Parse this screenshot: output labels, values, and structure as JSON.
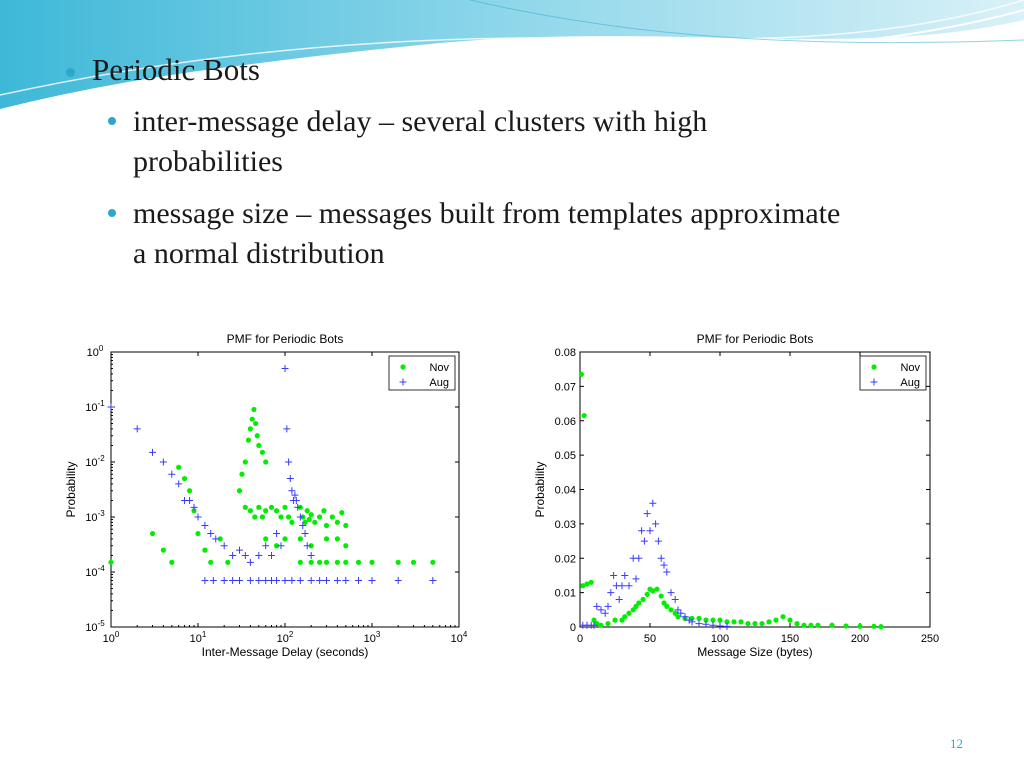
{
  "slide": {
    "bullet1": "Periodic Bots",
    "bullet2": "inter-message delay – several clusters with high probabilities",
    "bullet3": "message size – messages built from templates approximate a normal distribution",
    "page_number": "12"
  },
  "colors": {
    "nov": "#00ee00",
    "aug": "#3a3aff",
    "accent": "#2aa9c9"
  },
  "chart_data": [
    {
      "type": "scatter",
      "title": "PMF for Periodic Bots",
      "xlabel": "Inter-Message Delay (seconds)",
      "ylabel": "Probability",
      "xscale": "log",
      "yscale": "log",
      "xlim": [
        1,
        10000
      ],
      "ylim": [
        1e-05,
        1
      ],
      "xticks": [
        "10^0",
        "10^1",
        "10^2",
        "10^3",
        "10^4"
      ],
      "yticks": [
        "10^-5",
        "10^-4",
        "10^-3",
        "10^-2",
        "10^-1",
        "10^0"
      ],
      "legend_position": "top-right",
      "series": [
        {
          "name": "Nov",
          "marker": "dot",
          "points": [
            [
              1,
              0.00015
            ],
            [
              3,
              0.0005
            ],
            [
              4,
              0.00025
            ],
            [
              5,
              0.00015
            ],
            [
              6,
              0.008
            ],
            [
              7,
              0.005
            ],
            [
              8,
              0.003
            ],
            [
              9,
              0.0013
            ],
            [
              10,
              0.0005
            ],
            [
              12,
              0.00025
            ],
            [
              14,
              0.00015
            ],
            [
              18,
              0.0004
            ],
            [
              22,
              0.00015
            ],
            [
              30,
              0.003
            ],
            [
              32,
              0.006
            ],
            [
              35,
              0.01
            ],
            [
              38,
              0.025
            ],
            [
              40,
              0.04
            ],
            [
              42,
              0.06
            ],
            [
              44,
              0.09
            ],
            [
              46,
              0.05
            ],
            [
              48,
              0.03
            ],
            [
              50,
              0.02
            ],
            [
              55,
              0.015
            ],
            [
              60,
              0.01
            ],
            [
              35,
              0.0015
            ],
            [
              40,
              0.0013
            ],
            [
              45,
              0.001
            ],
            [
              50,
              0.0015
            ],
            [
              55,
              0.001
            ],
            [
              60,
              0.0013
            ],
            [
              70,
              0.0015
            ],
            [
              80,
              0.0013
            ],
            [
              90,
              0.001
            ],
            [
              100,
              0.0015
            ],
            [
              110,
              0.001
            ],
            [
              120,
              0.0008
            ],
            [
              150,
              0.0015
            ],
            [
              160,
              0.001
            ],
            [
              170,
              0.0008
            ],
            [
              180,
              0.0013
            ],
            [
              190,
              0.0009
            ],
            [
              200,
              0.0011
            ],
            [
              220,
              0.0008
            ],
            [
              250,
              0.001
            ],
            [
              280,
              0.0013
            ],
            [
              300,
              0.0007
            ],
            [
              350,
              0.001
            ],
            [
              400,
              0.0008
            ],
            [
              450,
              0.0012
            ],
            [
              500,
              0.0007
            ],
            [
              60,
              0.0004
            ],
            [
              80,
              0.0003
            ],
            [
              100,
              0.0004
            ],
            [
              150,
              0.0004
            ],
            [
              200,
              0.0003
            ],
            [
              300,
              0.0004
            ],
            [
              400,
              0.0004
            ],
            [
              500,
              0.0003
            ],
            [
              150,
              0.00015
            ],
            [
              200,
              0.00015
            ],
            [
              250,
              0.00015
            ],
            [
              300,
              0.00015
            ],
            [
              400,
              0.00015
            ],
            [
              500,
              0.00015
            ],
            [
              700,
              0.00015
            ],
            [
              1000,
              0.00015
            ],
            [
              2000,
              0.00015
            ],
            [
              3000,
              0.00015
            ],
            [
              5000,
              0.00015
            ]
          ]
        },
        {
          "name": "Aug",
          "marker": "plus",
          "points": [
            [
              1,
              0.1
            ],
            [
              2,
              0.04
            ],
            [
              3,
              0.015
            ],
            [
              4,
              0.01
            ],
            [
              5,
              0.006
            ],
            [
              6,
              0.004
            ],
            [
              7,
              0.002
            ],
            [
              8,
              0.002
            ],
            [
              9,
              0.0015
            ],
            [
              10,
              0.001
            ],
            [
              12,
              0.0007
            ],
            [
              14,
              0.0005
            ],
            [
              16,
              0.0004
            ],
            [
              20,
              0.0003
            ],
            [
              25,
              0.0002
            ],
            [
              30,
              0.00025
            ],
            [
              35,
              0.0002
            ],
            [
              40,
              0.00015
            ],
            [
              50,
              0.0002
            ],
            [
              60,
              0.0003
            ],
            [
              70,
              0.0002
            ],
            [
              80,
              0.0005
            ],
            [
              90,
              0.0003
            ],
            [
              100,
              0.5
            ],
            [
              105,
              0.04
            ],
            [
              110,
              0.01
            ],
            [
              115,
              0.005
            ],
            [
              120,
              0.003
            ],
            [
              125,
              0.002
            ],
            [
              130,
              0.0025
            ],
            [
              135,
              0.002
            ],
            [
              140,
              0.0015
            ],
            [
              150,
              0.001
            ],
            [
              160,
              0.0007
            ],
            [
              170,
              0.0005
            ],
            [
              180,
              0.0003
            ],
            [
              200,
              0.0002
            ],
            [
              12,
              7e-05
            ],
            [
              15,
              7e-05
            ],
            [
              20,
              7e-05
            ],
            [
              25,
              7e-05
            ],
            [
              30,
              7e-05
            ],
            [
              40,
              7e-05
            ],
            [
              50,
              7e-05
            ],
            [
              60,
              7e-05
            ],
            [
              70,
              7e-05
            ],
            [
              80,
              7e-05
            ],
            [
              100,
              7e-05
            ],
            [
              120,
              7e-05
            ],
            [
              150,
              7e-05
            ],
            [
              200,
              7e-05
            ],
            [
              250,
              7e-05
            ],
            [
              300,
              7e-05
            ],
            [
              400,
              7e-05
            ],
            [
              500,
              7e-05
            ],
            [
              700,
              7e-05
            ],
            [
              1000,
              7e-05
            ],
            [
              2000,
              7e-05
            ],
            [
              5000,
              7e-05
            ]
          ]
        }
      ]
    },
    {
      "type": "scatter",
      "title": "PMF for Periodic Bots",
      "xlabel": "Message Size (bytes)",
      "ylabel": "Probability",
      "xlim": [
        0,
        250
      ],
      "ylim": [
        0,
        0.08
      ],
      "xticks": [
        0,
        50,
        100,
        150,
        200,
        250
      ],
      "yticks": [
        0,
        0.01,
        0.02,
        0.03,
        0.04,
        0.05,
        0.06,
        0.07,
        0.08
      ],
      "legend_position": "top-right",
      "series": [
        {
          "name": "Nov",
          "marker": "dot",
          "points": [
            [
              1,
              0.0735
            ],
            [
              3,
              0.0615
            ],
            [
              2,
              0.012
            ],
            [
              5,
              0.0125
            ],
            [
              8,
              0.013
            ],
            [
              10,
              0.002
            ],
            [
              12,
              0.001
            ],
            [
              15,
              0.0005
            ],
            [
              20,
              0.001
            ],
            [
              25,
              0.002
            ],
            [
              30,
              0.002
            ],
            [
              32,
              0.003
            ],
            [
              35,
              0.004
            ],
            [
              38,
              0.005
            ],
            [
              40,
              0.006
            ],
            [
              42,
              0.007
            ],
            [
              45,
              0.008
            ],
            [
              48,
              0.0095
            ],
            [
              50,
              0.011
            ],
            [
              52,
              0.0105
            ],
            [
              55,
              0.011
            ],
            [
              58,
              0.009
            ],
            [
              60,
              0.007
            ],
            [
              62,
              0.006
            ],
            [
              65,
              0.005
            ],
            [
              68,
              0.004
            ],
            [
              70,
              0.003
            ],
            [
              75,
              0.0025
            ],
            [
              80,
              0.0025
            ],
            [
              85,
              0.0025
            ],
            [
              90,
              0.002
            ],
            [
              95,
              0.002
            ],
            [
              100,
              0.002
            ],
            [
              105,
              0.0015
            ],
            [
              110,
              0.0015
            ],
            [
              115,
              0.0015
            ],
            [
              120,
              0.001
            ],
            [
              125,
              0.001
            ],
            [
              130,
              0.001
            ],
            [
              135,
              0.0015
            ],
            [
              140,
              0.002
            ],
            [
              145,
              0.003
            ],
            [
              150,
              0.002
            ],
            [
              155,
              0.001
            ],
            [
              160,
              0.0005
            ],
            [
              165,
              0.0005
            ],
            [
              170,
              0.0005
            ],
            [
              180,
              0.0005
            ],
            [
              190,
              0.0003
            ],
            [
              200,
              0.0002
            ],
            [
              210,
              0.0002
            ],
            [
              215,
              0.0001
            ]
          ]
        },
        {
          "name": "Aug",
          "marker": "plus",
          "points": [
            [
              2,
              0.0005
            ],
            [
              5,
              0.0005
            ],
            [
              8,
              0.0005
            ],
            [
              10,
              0.0005
            ],
            [
              12,
              0.006
            ],
            [
              15,
              0.005
            ],
            [
              18,
              0.004
            ],
            [
              20,
              0.006
            ],
            [
              22,
              0.01
            ],
            [
              24,
              0.015
            ],
            [
              26,
              0.012
            ],
            [
              28,
              0.008
            ],
            [
              30,
              0.012
            ],
            [
              32,
              0.015
            ],
            [
              35,
              0.012
            ],
            [
              38,
              0.02
            ],
            [
              40,
              0.014
            ],
            [
              42,
              0.02
            ],
            [
              44,
              0.028
            ],
            [
              46,
              0.025
            ],
            [
              48,
              0.033
            ],
            [
              50,
              0.028
            ],
            [
              52,
              0.036
            ],
            [
              54,
              0.03
            ],
            [
              56,
              0.025
            ],
            [
              58,
              0.02
            ],
            [
              60,
              0.018
            ],
            [
              62,
              0.016
            ],
            [
              65,
              0.01
            ],
            [
              68,
              0.008
            ],
            [
              70,
              0.005
            ],
            [
              72,
              0.004
            ],
            [
              75,
              0.003
            ],
            [
              78,
              0.002
            ],
            [
              80,
              0.0015
            ],
            [
              85,
              0.001
            ],
            [
              90,
              0.0008
            ],
            [
              95,
              0.0005
            ],
            [
              100,
              0.0003
            ],
            [
              105,
              0.0002
            ]
          ]
        }
      ]
    }
  ]
}
